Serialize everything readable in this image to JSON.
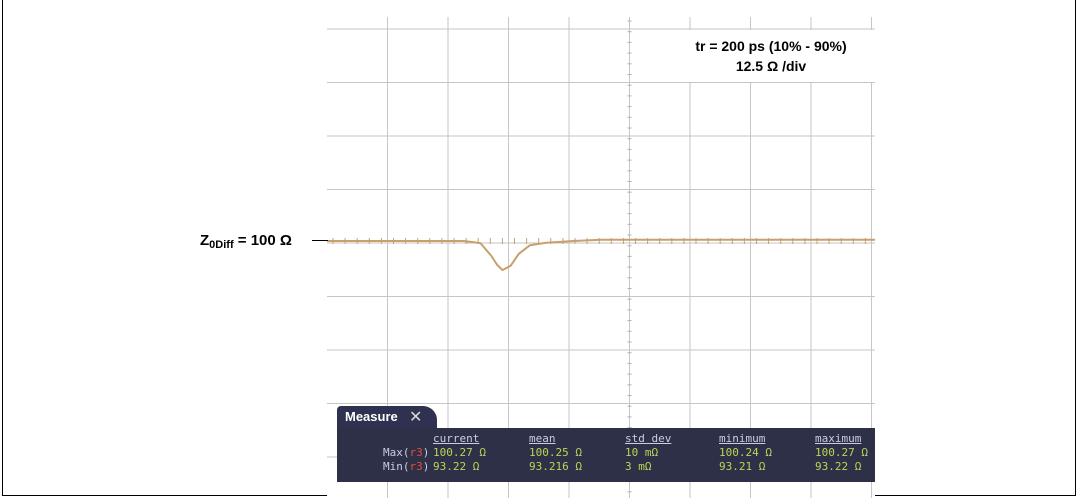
{
  "chart_data": {
    "type": "line",
    "title": "",
    "xlabel": "",
    "ylabel": "",
    "annotation": [
      "tr = 200 ps (10% - 90%)",
      "12.5 Ω /div"
    ],
    "reference_label": {
      "main": "Z",
      "sub": "0Diff",
      "tail": " = 100 Ω"
    },
    "x_divisions": 10,
    "y_divisions": 8,
    "x": [
      0,
      1,
      2,
      2.5,
      2.8,
      3.0,
      3.1,
      3.2,
      3.35,
      3.5,
      3.7,
      4.0,
      4.5,
      5.0,
      6,
      7,
      8,
      9,
      10
    ],
    "series": [
      {
        "values": [
          100,
          100,
          100,
          100,
          99.5,
          96.5,
          94.5,
          93.2,
          94.2,
          97.0,
          99.0,
          99.6,
          100.0,
          100.27,
          100.27,
          100.27,
          100.27,
          100.27,
          100.27
        ]
      }
    ],
    "y_center": 100,
    "y_per_div": 12.5
  },
  "measure": {
    "title": "Measure",
    "close_icon": "close-icon",
    "columns": [
      "current",
      "mean",
      "std dev",
      "minimum",
      "maximum"
    ],
    "rows": [
      {
        "label": "Max(",
        "ref": "r3",
        "close": ")",
        "values": [
          "100.27 Ω",
          "100.25 Ω",
          "10 mΩ",
          "100.24 Ω",
          "100.27 Ω"
        ]
      },
      {
        "label": "Min(",
        "ref": "r3",
        "close": ")",
        "values": [
          "93.22 Ω",
          "93.216 Ω",
          "3 mΩ",
          "93.21 Ω",
          "93.22 Ω"
        ]
      }
    ]
  },
  "colors": {
    "trace": "#c8a06c",
    "grid": "#c6c6c6",
    "panel": "#2e3048",
    "ref": "#e84a3a"
  }
}
